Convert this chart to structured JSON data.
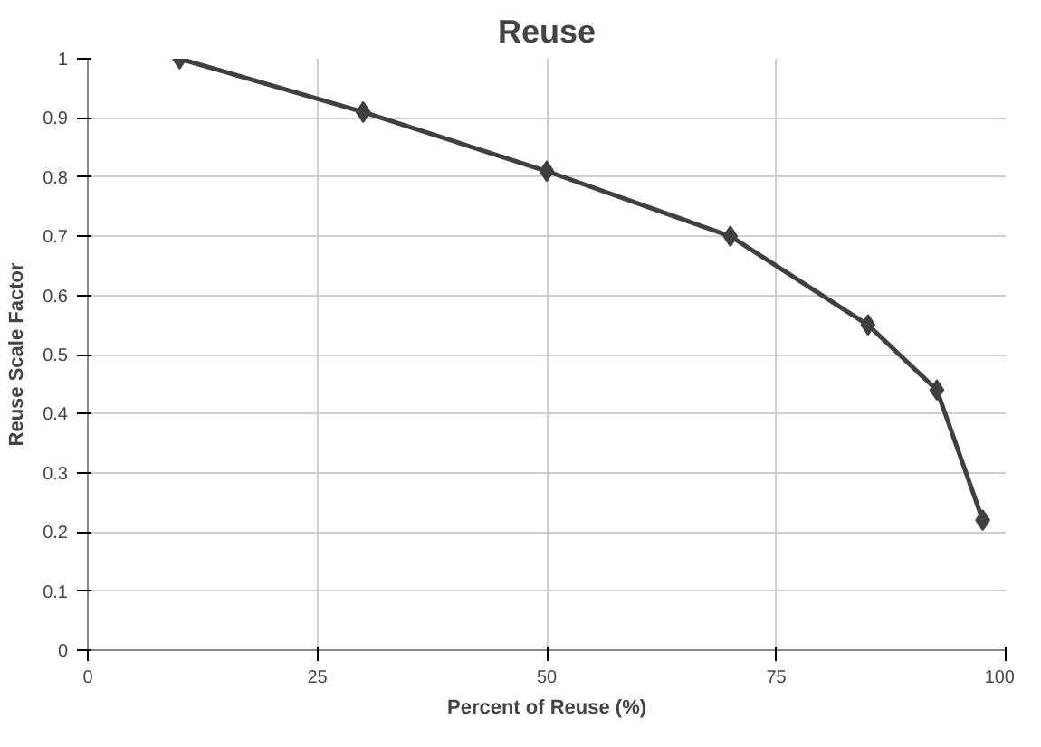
{
  "chart_data": {
    "type": "line",
    "title": "Reuse",
    "xlabel": "Percent of Reuse (%)",
    "ylabel": "Reuse Scale Factor",
    "x": [
      10,
      30,
      50,
      70,
      85,
      92.5,
      97.5
    ],
    "series": [
      {
        "color": "#404040",
        "values": [
          1.0,
          0.91,
          0.81,
          0.7,
          0.55,
          0.44,
          0.22
        ]
      }
    ],
    "xlim": [
      0,
      100
    ],
    "xticks": [
      0,
      25,
      50,
      75,
      100
    ],
    "ylim": [
      0,
      1
    ],
    "yticks": [
      0,
      0.1,
      0.2,
      0.3,
      0.4,
      0.5,
      0.6,
      0.7,
      0.8,
      0.9,
      1
    ],
    "grid": true,
    "marker": "diamond",
    "line_style": "solid"
  }
}
